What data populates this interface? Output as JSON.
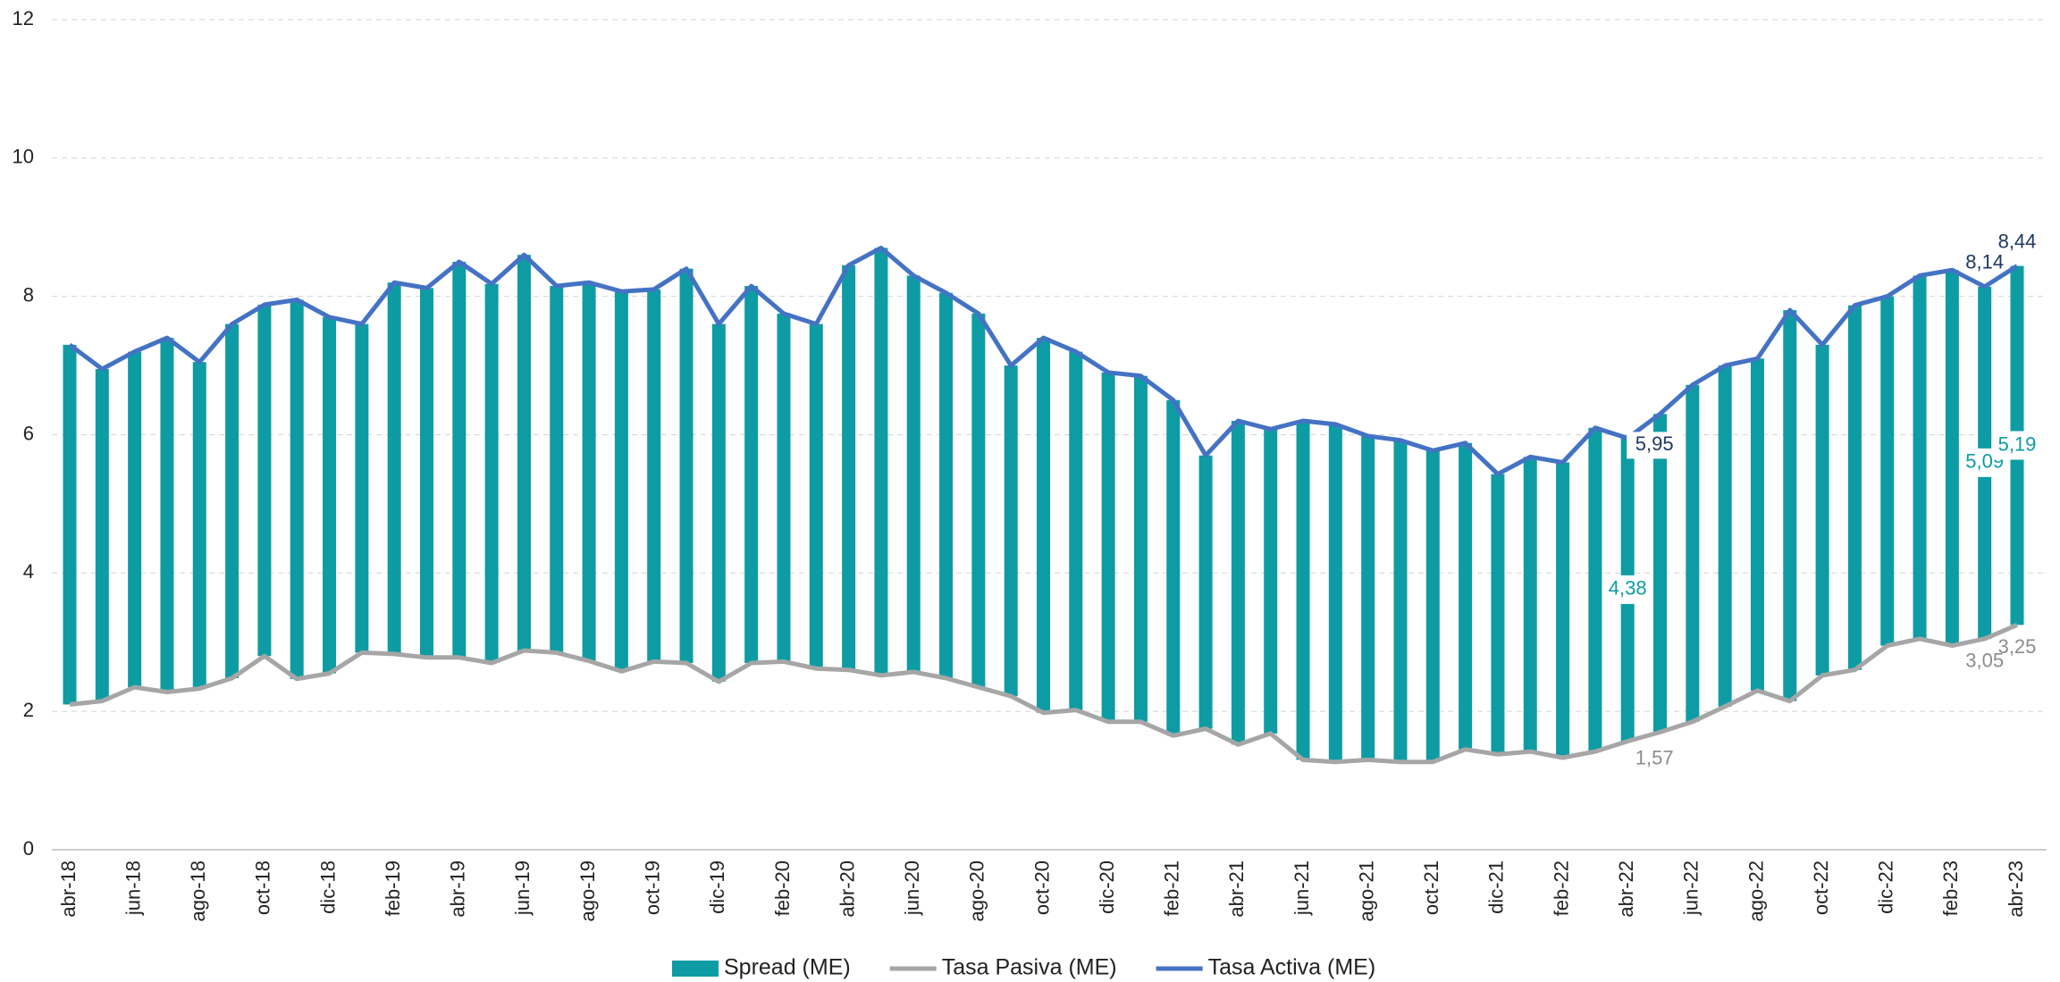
{
  "chart_data": {
    "type": "bar",
    "categories": [
      "abr-18",
      null,
      "jun-18",
      null,
      "ago-18",
      null,
      "oct-18",
      null,
      "dic-18",
      null,
      "feb-19",
      null,
      "abr-19",
      null,
      "jun-19",
      null,
      "ago-19",
      null,
      "oct-19",
      null,
      "dic-19",
      null,
      "feb-20",
      null,
      "abr-20",
      null,
      "jun-20",
      null,
      "ago-20",
      null,
      "oct-20",
      null,
      "dic-20",
      null,
      "feb-21",
      null,
      "abr-21",
      null,
      "jun-21",
      null,
      "ago-21",
      null,
      "oct-21",
      null,
      "dic-21",
      null,
      "feb-22",
      null,
      "abr-22",
      null,
      "jun-22",
      null,
      "ago-22",
      null,
      "oct-22",
      null,
      "dic-22",
      null,
      "feb-23",
      null,
      "abr-23"
    ],
    "series": [
      {
        "name": "Spread (ME)",
        "type": "bar",
        "color": "#0e9ca4",
        "label_color": "#0e9ca4",
        "values": [
          5.2,
          4.8,
          4.85,
          5.12,
          4.72,
          5.12,
          5.08,
          5.48,
          5.15,
          4.75,
          5.37,
          5.34,
          5.72,
          5.48,
          5.72,
          5.3,
          5.47,
          5.49,
          5.38,
          5.7,
          5.17,
          5.45,
          5.03,
          4.98,
          5.85,
          6.18,
          5.73,
          5.57,
          5.4,
          4.78,
          5.42,
          5.18,
          5.05,
          5.0,
          4.85,
          3.95,
          4.68,
          4.4,
          4.9,
          4.88,
          4.68,
          4.65,
          4.5,
          4.43,
          4.05,
          4.26,
          4.27,
          4.68,
          4.38,
          4.6,
          4.87,
          4.93,
          4.8,
          5.65,
          4.78,
          5.27,
          5.05,
          5.25,
          5.43,
          5.09,
          5.19
        ],
        "value_labels": [
          null,
          null,
          null,
          null,
          null,
          null,
          null,
          null,
          null,
          null,
          null,
          null,
          null,
          null,
          null,
          null,
          null,
          null,
          null,
          null,
          null,
          null,
          null,
          null,
          null,
          null,
          null,
          null,
          null,
          null,
          null,
          null,
          null,
          null,
          null,
          null,
          null,
          null,
          null,
          null,
          null,
          null,
          null,
          null,
          null,
          null,
          null,
          null,
          "4,38",
          null,
          null,
          null,
          null,
          null,
          null,
          null,
          null,
          null,
          null,
          "5,09",
          "5,19"
        ]
      },
      {
        "name": "Tasa Pasiva (ME)",
        "type": "line",
        "color": "#a6a6a6",
        "label_color": "#8c8c8c",
        "values": [
          2.1,
          2.15,
          2.35,
          2.28,
          2.33,
          2.48,
          2.8,
          2.47,
          2.55,
          2.85,
          2.83,
          2.78,
          2.78,
          2.7,
          2.88,
          2.85,
          2.73,
          2.58,
          2.72,
          2.7,
          2.43,
          2.7,
          2.72,
          2.62,
          2.6,
          2.52,
          2.57,
          2.48,
          2.35,
          2.22,
          1.98,
          2.02,
          1.85,
          1.85,
          1.65,
          1.75,
          1.52,
          1.68,
          1.3,
          1.27,
          1.3,
          1.27,
          1.27,
          1.45,
          1.38,
          1.42,
          1.33,
          1.42,
          1.57,
          1.7,
          1.85,
          2.07,
          2.3,
          2.15,
          2.52,
          2.6,
          2.95,
          3.05,
          2.95,
          3.05,
          3.25
        ],
        "value_labels": [
          null,
          null,
          null,
          null,
          null,
          null,
          null,
          null,
          null,
          null,
          null,
          null,
          null,
          null,
          null,
          null,
          null,
          null,
          null,
          null,
          null,
          null,
          null,
          null,
          null,
          null,
          null,
          null,
          null,
          null,
          null,
          null,
          null,
          null,
          null,
          null,
          null,
          null,
          null,
          null,
          null,
          null,
          null,
          null,
          null,
          null,
          null,
          null,
          "1,57",
          null,
          null,
          null,
          null,
          null,
          null,
          null,
          null,
          null,
          null,
          "3,05",
          "3,25"
        ]
      },
      {
        "name": "Tasa Activa (ME)",
        "type": "line",
        "color": "#4472c4",
        "label_color": "#1f3864",
        "values": [
          7.3,
          6.95,
          7.2,
          7.4,
          7.05,
          7.6,
          7.88,
          7.95,
          7.7,
          7.6,
          8.2,
          8.12,
          8.5,
          8.18,
          8.6,
          8.15,
          8.2,
          8.07,
          8.1,
          8.4,
          7.6,
          8.15,
          7.75,
          7.6,
          8.45,
          8.7,
          8.3,
          8.05,
          7.75,
          7.0,
          7.4,
          7.2,
          6.9,
          6.85,
          6.5,
          5.7,
          6.2,
          6.08,
          6.2,
          6.15,
          5.98,
          5.92,
          5.77,
          5.88,
          5.43,
          5.68,
          5.6,
          6.1,
          5.95,
          6.3,
          6.72,
          7.0,
          7.1,
          7.8,
          7.3,
          7.87,
          8.0,
          8.3,
          8.38,
          8.14,
          8.44
        ],
        "value_labels": [
          null,
          null,
          null,
          null,
          null,
          null,
          null,
          null,
          null,
          null,
          null,
          null,
          null,
          null,
          null,
          null,
          null,
          null,
          null,
          null,
          null,
          null,
          null,
          null,
          null,
          null,
          null,
          null,
          null,
          null,
          null,
          null,
          null,
          null,
          null,
          null,
          null,
          null,
          null,
          null,
          null,
          null,
          null,
          null,
          null,
          null,
          null,
          null,
          "5,95",
          null,
          null,
          null,
          null,
          null,
          null,
          null,
          null,
          null,
          null,
          "8,14",
          "8,44"
        ]
      }
    ],
    "ylim": [
      0,
      12
    ],
    "yticks": [
      0,
      2,
      4,
      6,
      8,
      10,
      12
    ],
    "grid": true,
    "legend": "bottom"
  }
}
